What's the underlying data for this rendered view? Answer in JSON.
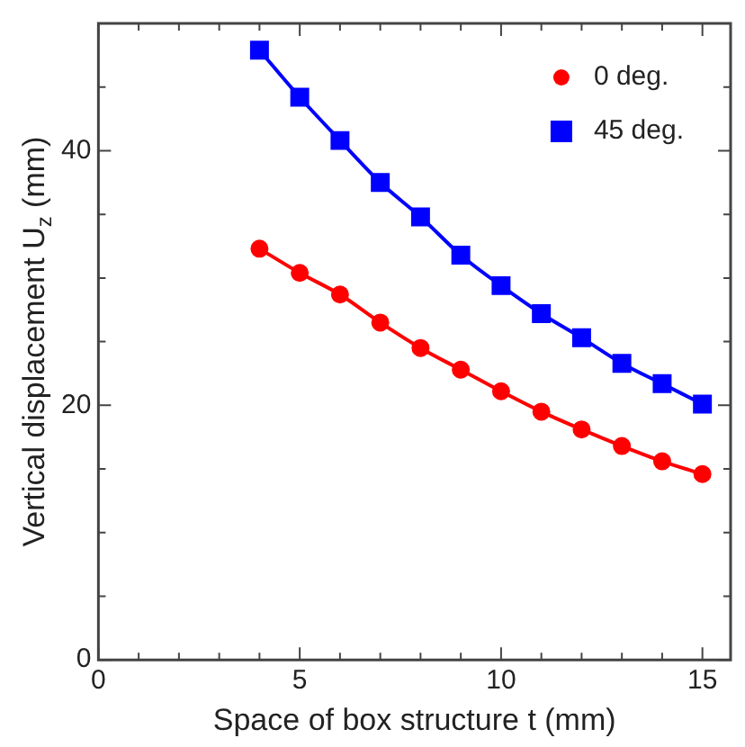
{
  "chart_data": {
    "type": "line",
    "xlabel": "Space of box structure t (mm)",
    "ylabel": "Vertical displacement U$_{z}$ (mm)",
    "x": [
      4,
      5,
      6,
      7,
      8,
      9,
      10,
      11,
      12,
      13,
      14,
      15
    ],
    "series": [
      {
        "name": "0 deg.",
        "color": "#ff0000",
        "marker": "circle",
        "values": [
          32.3,
          30.4,
          28.7,
          26.5,
          24.5,
          22.8,
          21.1,
          19.5,
          18.1,
          16.8,
          15.6,
          14.6
        ]
      },
      {
        "name": "45 deg.",
        "color": "#0000ff",
        "marker": "square",
        "values": [
          47.9,
          44.2,
          40.8,
          37.5,
          34.8,
          31.8,
          29.4,
          27.2,
          25.3,
          23.3,
          21.7,
          20.1
        ]
      }
    ],
    "xlim": [
      0,
      15.7
    ],
    "xticks": [
      0,
      {
        "value": 1,
        "label": null
      },
      {
        "value": 2,
        "label": null
      },
      {
        "value": 3,
        "label": null
      },
      {
        "value": 4,
        "label": null
      },
      5,
      {
        "value": 6,
        "label": null
      },
      {
        "value": 7,
        "label": null
      },
      {
        "value": 8,
        "label": null
      },
      {
        "value": 9,
        "label": null
      },
      10,
      {
        "value": 11,
        "label": null
      },
      {
        "value": 12,
        "label": null
      },
      {
        "value": 13,
        "label": null
      },
      {
        "value": 14,
        "label": null
      },
      15
    ],
    "ylim": [
      0,
      50
    ],
    "yticks": [
      0,
      {
        "value": 5,
        "label": null
      },
      {
        "value": 10,
        "label": null
      },
      {
        "value": 15,
        "label": null
      },
      20,
      {
        "value": 25,
        "label": null
      },
      {
        "value": 30,
        "label": null
      },
      {
        "value": 35,
        "label": null
      },
      40,
      {
        "value": 45,
        "label": null
      }
    ],
    "grid": false,
    "legend": "top right",
    "line_style": "solid"
  }
}
